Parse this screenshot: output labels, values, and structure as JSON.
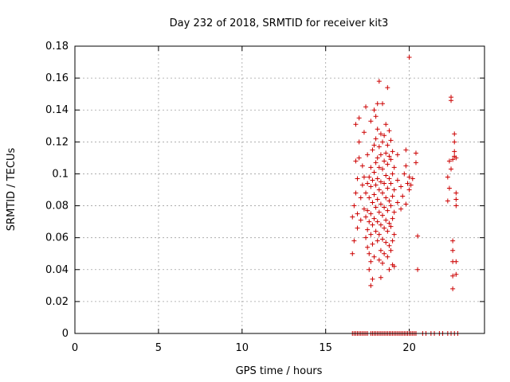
{
  "chart_data": {
    "type": "scatter",
    "title": "Day 232 of 2018, SRMTID for receiver kit3",
    "xlabel": "GPS time / hours",
    "ylabel": "SRMTID / TECUs",
    "xlim": [
      0,
      24.5
    ],
    "ylim": [
      0,
      0.18
    ],
    "x_ticks": [
      0,
      5,
      10,
      15,
      20
    ],
    "y_ticks": [
      0,
      0.02,
      0.04,
      0.06,
      0.08,
      0.1,
      0.12,
      0.14,
      0.16,
      0.18
    ],
    "x_tick_labels": [
      "0",
      "5",
      "10",
      "15",
      "20"
    ],
    "y_tick_labels": [
      "0",
      "0.02",
      "0.04",
      "0.06",
      "0.08",
      "0.1",
      "0.12",
      "0.14",
      "0.16",
      "0.18"
    ],
    "grid": true,
    "marker": "plus",
    "color": "#cc0000",
    "series": [
      {
        "points": [
          [
            16.6,
            0.05
          ],
          [
            16.6,
            0.073
          ],
          [
            16.7,
            0.058
          ],
          [
            16.7,
            0.08
          ],
          [
            16.8,
            0.088
          ],
          [
            16.8,
            0.108
          ],
          [
            16.8,
            0.131
          ],
          [
            16.9,
            0.066
          ],
          [
            16.9,
            0.075
          ],
          [
            16.9,
            0.097
          ],
          [
            17.0,
            0.11
          ],
          [
            17.0,
            0.12
          ],
          [
            17.0,
            0.135
          ],
          [
            17.1,
            0.071
          ],
          [
            17.1,
            0.085
          ],
          [
            17.2,
            0.093
          ],
          [
            17.2,
            0.105
          ],
          [
            17.3,
            0.078
          ],
          [
            17.3,
            0.098
          ],
          [
            17.3,
            0.126
          ],
          [
            17.4,
            0.06
          ],
          [
            17.4,
            0.073
          ],
          [
            17.4,
            0.088
          ],
          [
            17.4,
            0.142
          ],
          [
            17.5,
            0.054
          ],
          [
            17.5,
            0.065
          ],
          [
            17.5,
            0.077
          ],
          [
            17.5,
            0.094
          ],
          [
            17.5,
            0.112
          ],
          [
            17.6,
            0.04
          ],
          [
            17.6,
            0.05
          ],
          [
            17.6,
            0.07
          ],
          [
            17.6,
            0.085
          ],
          [
            17.6,
            0.098
          ],
          [
            17.7,
            0.03
          ],
          [
            17.7,
            0.045
          ],
          [
            17.7,
            0.062
          ],
          [
            17.7,
            0.075
          ],
          [
            17.7,
            0.092
          ],
          [
            17.7,
            0.104
          ],
          [
            17.7,
            0.133
          ],
          [
            17.8,
            0.034
          ],
          [
            17.8,
            0.056
          ],
          [
            17.8,
            0.068
          ],
          [
            17.8,
            0.082
          ],
          [
            17.8,
            0.096
          ],
          [
            17.8,
            0.115
          ],
          [
            17.9,
            0.048
          ],
          [
            17.9,
            0.072
          ],
          [
            17.9,
            0.087
          ],
          [
            17.9,
            0.101
          ],
          [
            17.9,
            0.118
          ],
          [
            17.9,
            0.14
          ],
          [
            18.0,
            0.064
          ],
          [
            18.0,
            0.079
          ],
          [
            18.0,
            0.093
          ],
          [
            18.0,
            0.107
          ],
          [
            18.0,
            0.122
          ],
          [
            18.0,
            0.136
          ],
          [
            18.1,
            0.058
          ],
          [
            18.1,
            0.07
          ],
          [
            18.1,
            0.084
          ],
          [
            18.1,
            0.097
          ],
          [
            18.1,
            0.11
          ],
          [
            18.1,
            0.128
          ],
          [
            18.1,
            0.144
          ],
          [
            18.2,
            0.046
          ],
          [
            18.2,
            0.062
          ],
          [
            18.2,
            0.076
          ],
          [
            18.2,
            0.09
          ],
          [
            18.2,
            0.104
          ],
          [
            18.2,
            0.117
          ],
          [
            18.2,
            0.158
          ],
          [
            18.3,
            0.035
          ],
          [
            18.3,
            0.052
          ],
          [
            18.3,
            0.068
          ],
          [
            18.3,
            0.081
          ],
          [
            18.3,
            0.095
          ],
          [
            18.3,
            0.112
          ],
          [
            18.3,
            0.125
          ],
          [
            18.4,
            0.044
          ],
          [
            18.4,
            0.059
          ],
          [
            18.4,
            0.074
          ],
          [
            18.4,
            0.088
          ],
          [
            18.4,
            0.103
          ],
          [
            18.4,
            0.12
          ],
          [
            18.4,
            0.144
          ],
          [
            18.5,
            0.05
          ],
          [
            18.5,
            0.066
          ],
          [
            18.5,
            0.079
          ],
          [
            18.5,
            0.094
          ],
          [
            18.5,
            0.108
          ],
          [
            18.5,
            0.124
          ],
          [
            18.6,
            0.057
          ],
          [
            18.6,
            0.071
          ],
          [
            18.6,
            0.085
          ],
          [
            18.6,
            0.099
          ],
          [
            18.6,
            0.113
          ],
          [
            18.6,
            0.131
          ],
          [
            18.7,
            0.048
          ],
          [
            18.7,
            0.064
          ],
          [
            18.7,
            0.077
          ],
          [
            18.7,
            0.091
          ],
          [
            18.7,
            0.106
          ],
          [
            18.7,
            0.118
          ],
          [
            18.7,
            0.154
          ],
          [
            18.8,
            0.04
          ],
          [
            18.8,
            0.055
          ],
          [
            18.8,
            0.069
          ],
          [
            18.8,
            0.083
          ],
          [
            18.8,
            0.097
          ],
          [
            18.8,
            0.111
          ],
          [
            18.8,
            0.127
          ],
          [
            18.9,
            0.052
          ],
          [
            18.9,
            0.067
          ],
          [
            18.9,
            0.08
          ],
          [
            18.9,
            0.094
          ],
          [
            18.9,
            0.109
          ],
          [
            18.9,
            0.121
          ],
          [
            19.0,
            0.043
          ],
          [
            19.0,
            0.058
          ],
          [
            19.0,
            0.072
          ],
          [
            19.0,
            0.086
          ],
          [
            19.0,
            0.1
          ],
          [
            19.0,
            0.114
          ],
          [
            19.1,
            0.042
          ],
          [
            19.1,
            0.062
          ],
          [
            19.1,
            0.076
          ],
          [
            19.1,
            0.09
          ],
          [
            19.1,
            0.104
          ],
          [
            19.3,
            0.082
          ],
          [
            19.3,
            0.096
          ],
          [
            19.3,
            0.112
          ],
          [
            19.5,
            0.078
          ],
          [
            19.5,
            0.092
          ],
          [
            19.6,
            0.086
          ],
          [
            19.7,
            0.1
          ],
          [
            19.8,
            0.081
          ],
          [
            19.8,
            0.105
          ],
          [
            19.8,
            0.115
          ],
          [
            19.9,
            0.094
          ],
          [
            20.0,
            0.09
          ],
          [
            20.0,
            0.098
          ],
          [
            20.0,
            0.173
          ],
          [
            20.1,
            0.093
          ],
          [
            20.2,
            0.097
          ],
          [
            20.4,
            0.107
          ],
          [
            20.4,
            0.113
          ],
          [
            20.5,
            0.04
          ],
          [
            20.5,
            0.061
          ],
          [
            22.3,
            0.083
          ],
          [
            22.3,
            0.098
          ],
          [
            22.4,
            0.108
          ],
          [
            22.4,
            0.091
          ],
          [
            22.5,
            0.103
          ],
          [
            22.5,
            0.146
          ],
          [
            22.5,
            0.148
          ],
          [
            22.6,
            0.028
          ],
          [
            22.6,
            0.036
          ],
          [
            22.6,
            0.045
          ],
          [
            22.6,
            0.052
          ],
          [
            22.6,
            0.058
          ],
          [
            22.6,
            0.109
          ],
          [
            22.7,
            0.114
          ],
          [
            22.7,
            0.12
          ],
          [
            22.7,
            0.125
          ],
          [
            22.7,
            0.111
          ],
          [
            22.8,
            0.037
          ],
          [
            22.8,
            0.045
          ],
          [
            22.8,
            0.08
          ],
          [
            22.8,
            0.084
          ],
          [
            22.8,
            0.088
          ],
          [
            22.8,
            0.11
          ],
          [
            16.6,
            0
          ],
          [
            16.7,
            0
          ],
          [
            16.8,
            0
          ],
          [
            16.9,
            0
          ],
          [
            17.0,
            0
          ],
          [
            17.1,
            0
          ],
          [
            17.2,
            0
          ],
          [
            17.3,
            0
          ],
          [
            17.4,
            0
          ],
          [
            17.5,
            0
          ],
          [
            17.7,
            0
          ],
          [
            17.8,
            0
          ],
          [
            17.9,
            0
          ],
          [
            18.0,
            0
          ],
          [
            18.1,
            0
          ],
          [
            18.2,
            0
          ],
          [
            18.3,
            0
          ],
          [
            18.4,
            0
          ],
          [
            18.5,
            0
          ],
          [
            18.6,
            0
          ],
          [
            18.7,
            0
          ],
          [
            18.8,
            0
          ],
          [
            18.9,
            0
          ],
          [
            19.0,
            0
          ],
          [
            19.1,
            0
          ],
          [
            19.2,
            0
          ],
          [
            19.3,
            0
          ],
          [
            19.4,
            0
          ],
          [
            19.5,
            0
          ],
          [
            19.6,
            0
          ],
          [
            19.7,
            0
          ],
          [
            19.8,
            0
          ],
          [
            19.9,
            0
          ],
          [
            20.0,
            0
          ],
          [
            20.1,
            0
          ],
          [
            20.2,
            0
          ],
          [
            20.3,
            0
          ],
          [
            20.4,
            0
          ],
          [
            20.8,
            0
          ],
          [
            21.0,
            0
          ],
          [
            21.3,
            0
          ],
          [
            21.5,
            0
          ],
          [
            21.8,
            0
          ],
          [
            22.0,
            0
          ],
          [
            22.3,
            0
          ],
          [
            22.5,
            0
          ],
          [
            22.7,
            0
          ],
          [
            22.9,
            0
          ]
        ]
      }
    ]
  }
}
